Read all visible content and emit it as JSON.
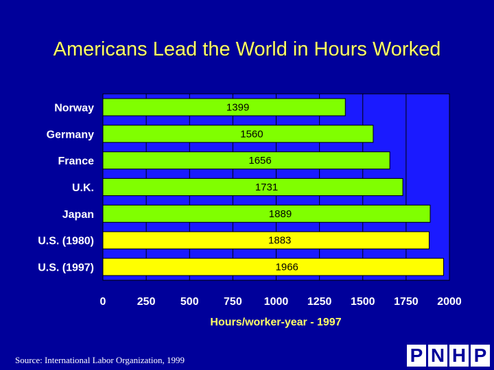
{
  "title": "Americans Lead the World in Hours Worked",
  "source": "Source: International Labor Organization, 1999",
  "logo": {
    "text": "PNHP",
    "letters": [
      "P",
      "N",
      "H",
      "P"
    ]
  },
  "colors": {
    "background": "#00009a",
    "plot_area": "#1a1aff",
    "bar_other": "#80ff00",
    "bar_us": "#ffff00",
    "title": "#ffff66"
  },
  "chart_data": {
    "type": "bar",
    "orientation": "horizontal",
    "title": "Americans Lead the World in Hours Worked",
    "xlabel": "Hours/worker-year - 1997",
    "ylabel": "",
    "xlim": [
      0,
      2000
    ],
    "xticks": [
      0,
      250,
      500,
      750,
      1000,
      1250,
      1500,
      1750,
      2000
    ],
    "grid": true,
    "categories": [
      "Norway",
      "Germany",
      "France",
      "U.K.",
      "Japan",
      "U.S. (1980)",
      "U.S. (1997)"
    ],
    "values": [
      1399,
      1560,
      1656,
      1731,
      1889,
      1883,
      1966
    ],
    "bar_colors": [
      "#80ff00",
      "#80ff00",
      "#80ff00",
      "#80ff00",
      "#80ff00",
      "#ffff00",
      "#ffff00"
    ]
  }
}
